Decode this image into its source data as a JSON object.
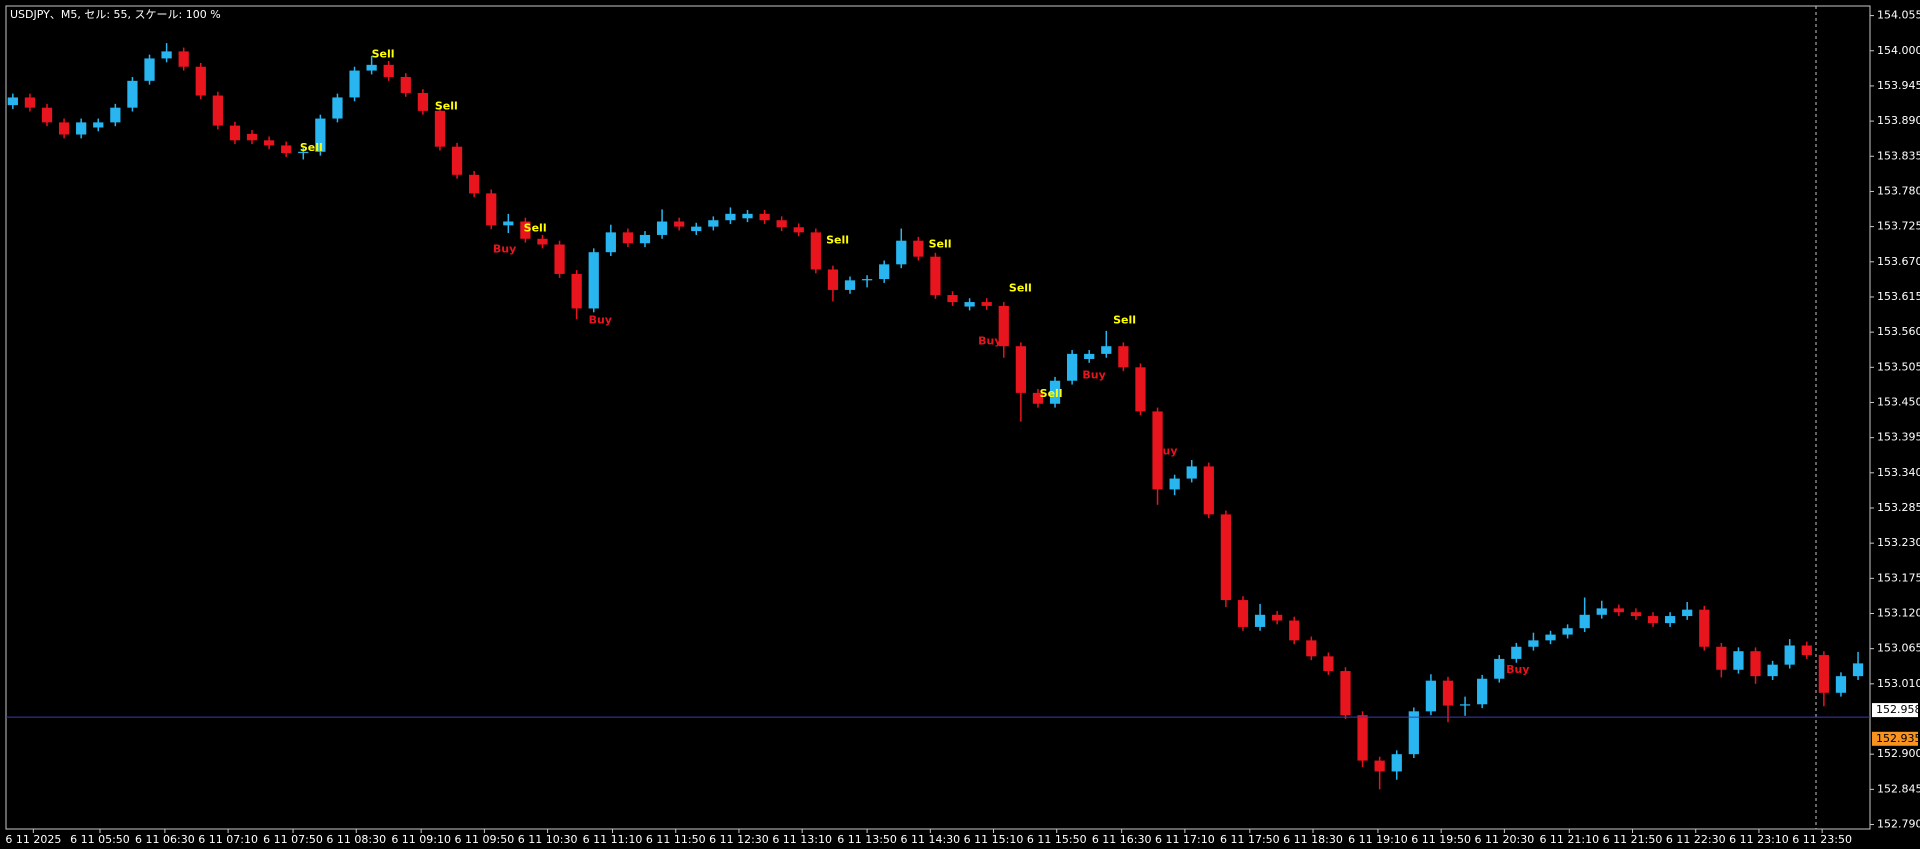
{
  "chart_data": {
    "type": "candlestick",
    "title": "USDJPY、M5, セル: 55, スケール: 100 %",
    "up_color": "#29b6f0",
    "down_color": "#e8141e",
    "xlim": [
      -0.4,
      108.7
    ],
    "ylim": [
      152.783,
      154.07
    ],
    "yticks": [
      154.055,
      {
        "value": 154,
        "label": "154.000"
      },
      153.945,
      {
        "value": 153.89,
        "label": "153.890"
      },
      153.835,
      {
        "value": 153.78,
        "label": "153.780"
      },
      153.725,
      {
        "value": 153.67,
        "label": "153.670"
      },
      153.615,
      {
        "value": 153.56,
        "label": "153.560"
      },
      153.505,
      {
        "value": 153.45,
        "label": "153.450"
      },
      153.395,
      {
        "value": 153.34,
        "label": "153.340"
      },
      153.285,
      {
        "value": 153.23,
        "label": "153.230"
      },
      153.175,
      {
        "value": 153.12,
        "label": "153.120"
      },
      153.065,
      {
        "value": 153.01,
        "label": "153.010"
      },
      {
        "value": 152.9,
        "label": "152.900"
      },
      152.845,
      {
        "value": 152.79,
        "label": "152.790"
      }
    ],
    "xticks": [
      {
        "value": 1.2,
        "label": "6 11 2025"
      },
      {
        "value": 5.1,
        "label": "6 11 05:50"
      },
      {
        "value": 8.9,
        "label": "6 11 06:30"
      },
      {
        "value": 12.6,
        "label": "6 11 07:10"
      },
      {
        "value": 16.4,
        "label": "6 11 07:50"
      },
      {
        "value": 20.1,
        "label": "6 11 08:30"
      },
      {
        "value": 23.9,
        "label": "6 11 09:10"
      },
      {
        "value": 27.6,
        "label": "6 11 09:50"
      },
      {
        "value": 31.3,
        "label": "6 11 10:30"
      },
      {
        "value": 35.1,
        "label": "6 11 11:10"
      },
      {
        "value": 38.8,
        "label": "6 11 11:50"
      },
      {
        "value": 42.5,
        "label": "6 11 12:30"
      },
      {
        "value": 46.2,
        "label": "6 11 13:10"
      },
      {
        "value": 50,
        "label": "6 11 13:50"
      },
      {
        "value": 53.7,
        "label": "6 11 14:30"
      },
      {
        "value": 57.4,
        "label": "6 11 15:10"
      },
      {
        "value": 61.1,
        "label": "6 11 15:50"
      },
      {
        "value": 64.9,
        "label": "6 11 16:30"
      },
      {
        "value": 68.6,
        "label": "6 11 17:10"
      },
      {
        "value": 72.4,
        "label": "6 11 17:50"
      },
      {
        "value": 76.1,
        "label": "6 11 18:30"
      },
      {
        "value": 79.9,
        "label": "6 11 19:10"
      },
      {
        "value": 83.6,
        "label": "6 11 19:50"
      },
      {
        "value": 87.3,
        "label": "6 11 20:30"
      },
      {
        "value": 91.1,
        "label": "6 11 21:10"
      },
      {
        "value": 94.8,
        "label": "6 11 21:50"
      },
      {
        "value": 98.5,
        "label": "6 11 22:30"
      },
      {
        "value": 102.2,
        "label": "6 11 23:10"
      },
      {
        "value": 105.9,
        "label": "6 11 23:50"
      }
    ],
    "price_lines": [
      {
        "value": 152.958,
        "color": "#ffffff",
        "line_color": "#3b3bb3"
      },
      {
        "value": 152.935,
        "color": "#f7931e"
      }
    ],
    "signal_groups": [
      {
        "text": "Sell",
        "color": "#ffff00",
        "points": [
          [
            21,
            153.994
          ],
          [
            24.7,
            153.913
          ],
          [
            16.8,
            153.848
          ],
          [
            29.9,
            153.722
          ],
          [
            47.6,
            153.703
          ],
          [
            53.6,
            153.697
          ],
          [
            58.3,
            153.628
          ],
          [
            64.4,
            153.578
          ],
          [
            60.1,
            153.463
          ]
        ]
      },
      {
        "text": "Buy",
        "color": "#e8141e",
        "points": [
          [
            28.1,
            153.689
          ],
          [
            33.7,
            153.578
          ],
          [
            56.5,
            153.545
          ],
          [
            62.6,
            153.492
          ],
          [
            66.8,
            153.373
          ],
          [
            87.4,
            153.032
          ]
        ]
      }
    ],
    "candles": [
      [
        153.915,
        153.933,
        153.909,
        153.927
      ],
      [
        153.927,
        153.933,
        153.905,
        153.911
      ],
      [
        153.911,
        153.917,
        153.882,
        153.888
      ],
      [
        153.888,
        153.894,
        153.863,
        153.869
      ],
      [
        153.869,
        153.894,
        153.863,
        153.888
      ],
      [
        153.88,
        153.894,
        153.874,
        153.888
      ],
      [
        153.888,
        153.917,
        153.882,
        153.911
      ],
      [
        153.911,
        153.959,
        153.905,
        153.953
      ],
      [
        153.953,
        153.994,
        153.947,
        153.988
      ],
      [
        153.988,
        154.012,
        153.982,
        153.999
      ],
      [
        153.999,
        154.005,
        153.969,
        153.975
      ],
      [
        153.975,
        153.981,
        153.924,
        153.93
      ],
      [
        153.93,
        153.936,
        153.877,
        153.883
      ],
      [
        153.883,
        153.889,
        153.854,
        153.86
      ],
      [
        153.87,
        153.876,
        153.854,
        153.86
      ],
      [
        153.86,
        153.866,
        153.846,
        153.852
      ],
      [
        153.852,
        153.858,
        153.834,
        153.84
      ],
      [
        153.84,
        153.848,
        153.83,
        153.842
      ],
      [
        153.842,
        153.9,
        153.836,
        153.894
      ],
      [
        153.894,
        153.933,
        153.888,
        153.927
      ],
      [
        153.927,
        153.975,
        153.921,
        153.969
      ],
      [
        153.969,
        153.992,
        153.963,
        153.978
      ],
      [
        153.978,
        153.984,
        153.953,
        153.959
      ],
      [
        153.959,
        153.965,
        153.928,
        153.934
      ],
      [
        153.934,
        153.94,
        153.9,
        153.906
      ],
      [
        153.906,
        153.912,
        153.844,
        153.85
      ],
      [
        153.85,
        153.856,
        153.8,
        153.806
      ],
      [
        153.806,
        153.812,
        153.771,
        153.777
      ],
      [
        153.777,
        153.783,
        153.721,
        153.727
      ],
      [
        153.727,
        153.745,
        153.715,
        153.733
      ],
      [
        153.733,
        153.739,
        153.7,
        153.706
      ],
      [
        153.706,
        153.712,
        153.691,
        153.697
      ],
      [
        153.697,
        153.703,
        153.645,
        153.651
      ],
      [
        153.651,
        153.657,
        153.58,
        153.597
      ],
      [
        153.597,
        153.691,
        153.591,
        153.685
      ],
      [
        153.685,
        153.728,
        153.679,
        153.716
      ],
      [
        153.716,
        153.722,
        153.693,
        153.699
      ],
      [
        153.699,
        153.718,
        153.693,
        153.712
      ],
      [
        153.712,
        153.752,
        153.706,
        153.733
      ],
      [
        153.733,
        153.739,
        153.719,
        153.725
      ],
      [
        153.718,
        153.731,
        153.712,
        153.725
      ],
      [
        153.725,
        153.741,
        153.719,
        153.735
      ],
      [
        153.735,
        153.755,
        153.729,
        153.745
      ],
      [
        153.738,
        153.751,
        153.732,
        153.745
      ],
      [
        153.745,
        153.751,
        153.729,
        153.735
      ],
      [
        153.735,
        153.741,
        153.718,
        153.724
      ],
      [
        153.724,
        153.73,
        153.71,
        153.716
      ],
      [
        153.716,
        153.722,
        153.652,
        153.658
      ],
      [
        153.658,
        153.664,
        153.608,
        153.626
      ],
      [
        153.626,
        153.647,
        153.62,
        153.641
      ],
      [
        153.641,
        153.649,
        153.63,
        153.643
      ],
      [
        153.643,
        153.672,
        153.637,
        153.666
      ],
      [
        153.666,
        153.722,
        153.66,
        153.703
      ],
      [
        153.703,
        153.709,
        153.672,
        153.678
      ],
      [
        153.678,
        153.684,
        153.612,
        153.618
      ],
      [
        153.618,
        153.624,
        153.601,
        153.607
      ],
      [
        153.6,
        153.613,
        153.594,
        153.607
      ],
      [
        153.607,
        153.613,
        153.595,
        153.601
      ],
      [
        153.601,
        153.607,
        153.52,
        153.538
      ],
      [
        153.538,
        153.544,
        153.42,
        153.465
      ],
      [
        153.465,
        153.471,
        153.442,
        153.448
      ],
      [
        153.448,
        153.49,
        153.442,
        153.484
      ],
      [
        153.484,
        153.532,
        153.478,
        153.526
      ],
      [
        153.518,
        153.532,
        153.512,
        153.526
      ],
      [
        153.526,
        153.562,
        153.52,
        153.538
      ],
      [
        153.538,
        153.544,
        153.499,
        153.505
      ],
      [
        153.505,
        153.511,
        153.43,
        153.436
      ],
      [
        153.436,
        153.442,
        153.29,
        153.314
      ],
      [
        153.314,
        153.337,
        153.305,
        153.331
      ],
      [
        153.331,
        153.36,
        153.325,
        153.35
      ],
      [
        153.35,
        153.356,
        153.269,
        153.275
      ],
      [
        153.275,
        153.281,
        153.13,
        153.141
      ],
      [
        153.141,
        153.147,
        153.093,
        153.099
      ],
      [
        153.099,
        153.135,
        153.093,
        153.118
      ],
      [
        153.118,
        153.124,
        153.103,
        153.109
      ],
      [
        153.109,
        153.115,
        153.072,
        153.078
      ],
      [
        153.078,
        153.084,
        153.047,
        153.053
      ],
      [
        153.053,
        153.059,
        153.024,
        153.03
      ],
      [
        153.03,
        153.036,
        152.955,
        152.961
      ],
      [
        152.961,
        152.967,
        152.88,
        152.89
      ],
      [
        152.89,
        152.896,
        152.845,
        152.873
      ],
      [
        152.873,
        152.906,
        152.86,
        152.9
      ],
      [
        152.9,
        152.973,
        152.894,
        152.967
      ],
      [
        152.967,
        153.025,
        152.961,
        153.015
      ],
      [
        153.015,
        153.021,
        152.95,
        152.976
      ],
      [
        152.976,
        152.99,
        152.96,
        152.978
      ],
      [
        152.978,
        153.024,
        152.972,
        153.018
      ],
      [
        153.018,
        153.055,
        153.012,
        153.049
      ],
      [
        153.049,
        153.074,
        153.043,
        153.068
      ],
      [
        153.068,
        153.09,
        153.062,
        153.078
      ],
      [
        153.078,
        153.093,
        153.072,
        153.087
      ],
      [
        153.087,
        153.103,
        153.081,
        153.097
      ],
      [
        153.097,
        153.145,
        153.091,
        153.118
      ],
      [
        153.118,
        153.14,
        153.112,
        153.128
      ],
      [
        153.128,
        153.134,
        153.116,
        153.122
      ],
      [
        153.122,
        153.128,
        153.11,
        153.116
      ],
      [
        153.116,
        153.122,
        153.099,
        153.105
      ],
      [
        153.105,
        153.122,
        153.099,
        153.116
      ],
      [
        153.116,
        153.138,
        153.11,
        153.126
      ],
      [
        153.126,
        153.132,
        153.062,
        153.068
      ],
      [
        153.068,
        153.074,
        153.02,
        153.032
      ],
      [
        153.032,
        153.067,
        153.026,
        153.061
      ],
      [
        153.061,
        153.067,
        153.01,
        153.022
      ],
      [
        153.022,
        153.046,
        153.016,
        153.04
      ],
      [
        153.04,
        153.08,
        153.034,
        153.07
      ],
      [
        153.07,
        153.076,
        153.049,
        153.055
      ],
      [
        153.055,
        153.061,
        152.975,
        152.996
      ],
      [
        152.996,
        153.028,
        152.99,
        153.022
      ],
      [
        153.022,
        153.06,
        153.016,
        153.042
      ]
    ]
  }
}
